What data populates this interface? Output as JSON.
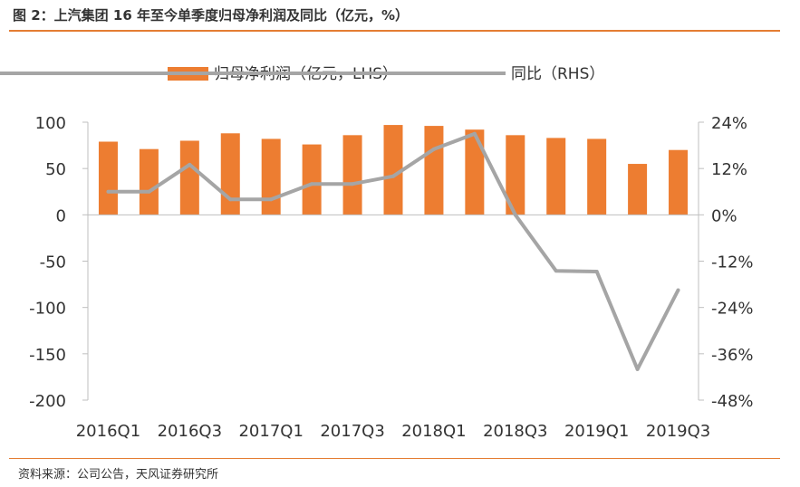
{
  "title": "图 2：上汽集团 16 年至今单季度归母净利润及同比（亿元，%）",
  "source": "资料来源：公司公告，天风证券研究所",
  "colors": {
    "bar": "#ed7d31",
    "line": "#a5a5a5",
    "axis": "#bfbfbf",
    "accent": "#e47d33"
  },
  "chart_data": {
    "type": "bar+line",
    "categories": [
      "2016Q1",
      "2016Q2",
      "2016Q3",
      "2016Q4",
      "2017Q1",
      "2017Q2",
      "2017Q3",
      "2017Q4",
      "2018Q1",
      "2018Q2",
      "2018Q3",
      "2018Q4",
      "2019Q1",
      "2019Q2",
      "2019Q3"
    ],
    "x_tick_labels": [
      "2016Q1",
      "2016Q3",
      "2017Q1",
      "2017Q3",
      "2018Q1",
      "2018Q3",
      "2019Q1",
      "2019Q3"
    ],
    "series": [
      {
        "name": "归母净利润（亿元，LHS）",
        "type": "bar",
        "axis": "left",
        "values": [
          79,
          71,
          80,
          88,
          82,
          76,
          86,
          97,
          96,
          92,
          86,
          83,
          82,
          55,
          70
        ]
      },
      {
        "name": "同比（RHS）",
        "type": "line",
        "axis": "right",
        "values": [
          6,
          6,
          13,
          4,
          4,
          8,
          8,
          10,
          17,
          21,
          0,
          -14.5,
          -14.7,
          -40,
          -19.5
        ]
      }
    ],
    "y_left": {
      "min": -200,
      "max": 100,
      "ticks": [
        "100",
        "50",
        "0",
        "-50",
        "-100",
        "-150",
        "-200"
      ]
    },
    "y_right": {
      "min": -48,
      "max": 24,
      "ticks": [
        "24%",
        "12%",
        "0%",
        "-12%",
        "-24%",
        "-36%",
        "-48%"
      ]
    },
    "legend_position": "top"
  }
}
